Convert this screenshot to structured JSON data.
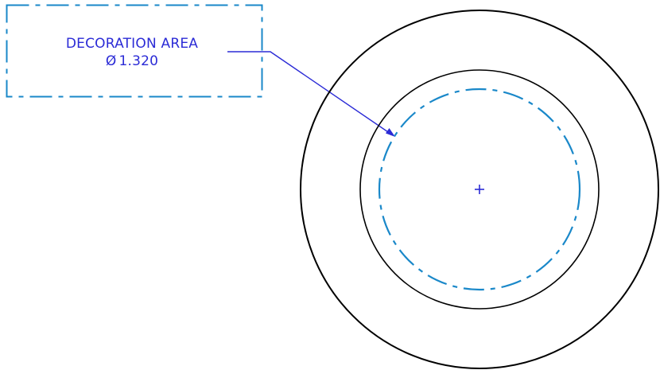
{
  "annotation": {
    "title": "DECORATION AREA",
    "diameter_symbol": "Ø",
    "diameter_value": "1.320"
  },
  "colors": {
    "outline": "#000000",
    "annotation_text": "#2b2bd6",
    "decoration_circle": "#1a88c9",
    "label_box": "#1a88c9",
    "leader": "#2b2bd6"
  }
}
